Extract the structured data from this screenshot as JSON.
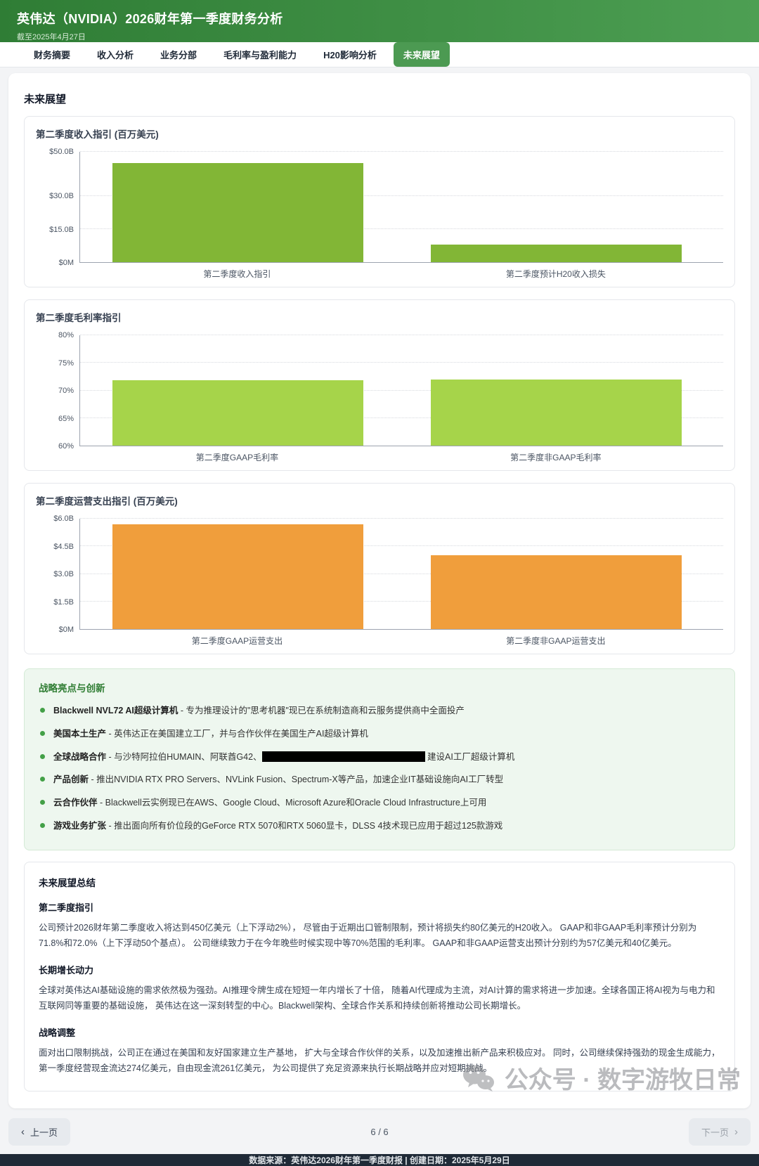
{
  "header": {
    "title": "英伟达（NVIDIA）2026财年第一季度财务分析",
    "subtitle": "截至2025年4月27日"
  },
  "tabs": [
    {
      "id": "financial-summary",
      "label": "财务摘要",
      "active": false
    },
    {
      "id": "revenue-analysis",
      "label": "收入分析",
      "active": false
    },
    {
      "id": "business-segments",
      "label": "业务分部",
      "active": false
    },
    {
      "id": "margin-profitability",
      "label": "毛利率与盈利能力",
      "active": false
    },
    {
      "id": "h20-impact",
      "label": "H20影响分析",
      "active": false
    },
    {
      "id": "future-outlook",
      "label": "未来展望",
      "active": true
    }
  ],
  "section_title": "未来展望",
  "chart_data": [
    {
      "type": "bar",
      "title": "第二季度收入指引 (百万美元)",
      "categories": [
        "第二季度收入指引",
        "第二季度预计H20收入损失"
      ],
      "values": [
        45000,
        8000
      ],
      "ylim": [
        0,
        50000
      ],
      "yticks": [
        {
          "value": 50000,
          "label": "$50.0B"
        },
        {
          "value": 30000,
          "label": "$30.0B"
        },
        {
          "value": 15000,
          "label": "$15.0B"
        },
        {
          "value": 0,
          "label": "$0M"
        }
      ],
      "bar_color": "#82b636",
      "grid": "dotted",
      "legend": "none"
    },
    {
      "type": "bar",
      "title": "第二季度毛利率指引",
      "categories": [
        "第二季度GAAP毛利率",
        "第二季度非GAAP毛利率"
      ],
      "values": [
        71.8,
        72.0
      ],
      "ylim": [
        60,
        80
      ],
      "yticks": [
        {
          "value": 80,
          "label": "80%"
        },
        {
          "value": 75,
          "label": "75%"
        },
        {
          "value": 70,
          "label": "70%"
        },
        {
          "value": 65,
          "label": "65%"
        },
        {
          "value": 60,
          "label": "60%"
        }
      ],
      "bar_color": "#a6d44a",
      "grid": "dotted",
      "legend": "none"
    },
    {
      "type": "bar",
      "title": "第二季度运营支出指引 (百万美元)",
      "categories": [
        "第二季度GAAP运营支出",
        "第二季度非GAAP运营支出"
      ],
      "values": [
        5700,
        4000
      ],
      "ylim": [
        0,
        6000
      ],
      "yticks": [
        {
          "value": 6000,
          "label": "$6.0B"
        },
        {
          "value": 4500,
          "label": "$4.5B"
        },
        {
          "value": 3000,
          "label": "$3.0B"
        },
        {
          "value": 1500,
          "label": "$1.5B"
        },
        {
          "value": 0,
          "label": "$0M"
        }
      ],
      "bar_color": "#f09e3c",
      "grid": "dotted",
      "legend": "none"
    }
  ],
  "highlights": {
    "title": "战略亮点与创新",
    "sep": " - ",
    "items": [
      {
        "lead": "Blackwell NVL72 AI超级计算机",
        "desc": "专为推理设计的\"思考机器\"现已在系统制造商和云服务提供商中全面投产"
      },
      {
        "lead": "美国本土生产",
        "desc": "英伟达正在美国建立工厂，并与合作伙伴在美国生产AI超级计算机"
      },
      {
        "lead": "全球战略合作",
        "desc": "与沙特阿拉伯HUMAIN、阿联酋G42、",
        "redacted": true,
        "desc_after": " 建设AI工厂超级计算机"
      },
      {
        "lead": "产品创新",
        "desc": "推出NVIDIA RTX PRO Servers、NVLink Fusion、Spectrum-X等产品，加速企业IT基础设施向AI工厂转型"
      },
      {
        "lead": "云合作伙伴",
        "desc": "Blackwell云实例现已在AWS、Google Cloud、Microsoft Azure和Oracle Cloud Infrastructure上可用"
      },
      {
        "lead": "游戏业务扩张",
        "desc": "推出面向所有价位段的GeForce RTX 5070和RTX 5060显卡，DLSS 4技术现已应用于超过125款游戏"
      }
    ]
  },
  "summary": {
    "title": "未来展望总结",
    "sections": [
      {
        "heading": "第二季度指引",
        "text": "公司预计2026财年第二季度收入将达到450亿美元（上下浮动2%）， 尽管由于近期出口管制限制，预计将损失约80亿美元的H20收入。 GAAP和非GAAP毛利率预计分别为71.8%和72.0%（上下浮动50个基点）。 公司继续致力于在今年晚些时候实现中等70%范围的毛利率。 GAAP和非GAAP运营支出预计分别约为57亿美元和40亿美元。"
      },
      {
        "heading": "长期增长动力",
        "text": "全球对英伟达AI基础设施的需求依然极为强劲。AI推理令牌生成在短短一年内增长了十倍， 随着AI代理成为主流，对AI计算的需求将进一步加速。全球各国正将AI视为与电力和互联网同等重要的基础设施， 英伟达在这一深刻转型的中心。Blackwell架构、全球合作关系和持续创新将推动公司长期增长。"
      },
      {
        "heading": "战略调整",
        "text": "面对出口限制挑战，公司正在通过在美国和友好国家建立生产基地， 扩大与全球合作伙伴的关系，以及加速推出新产品来积极应对。 同时，公司继续保持强劲的现金生成能力，第一季度经营现金流达274亿美元，自由现金流261亿美元， 为公司提供了充足资源来执行长期战略并应对短期挑战。"
      }
    ]
  },
  "pagination": {
    "prev": "上一页",
    "next": "下一页",
    "indicator": "6 / 6"
  },
  "watermark": {
    "text": "公众号 · 数字游牧日常"
  },
  "footer": {
    "text": "数据来源：英伟达2026财年第一季度财报 | 创建日期：2025年5月29日"
  },
  "colors": {
    "header_gradient_start": "#2f7d35",
    "header_gradient_end": "#4d9f53",
    "active_tab": "#4c9a52",
    "revenue_bar": "#82b636",
    "margin_bar": "#a6d44a",
    "opex_bar": "#f09e3c",
    "highlight_bg": "#eef7ef",
    "footer_bg": "#1f2a37"
  }
}
